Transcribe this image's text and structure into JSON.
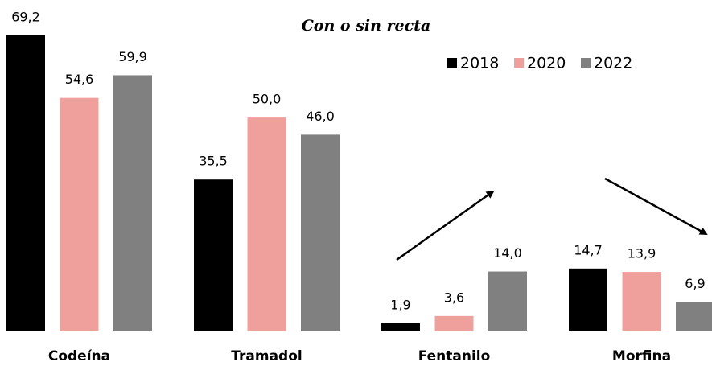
{
  "chart_data": {
    "type": "bar",
    "title": "Con o sin recta",
    "categories": [
      "Codeína",
      "Tramadol",
      "Fentanilo",
      "Morfina"
    ],
    "series": [
      {
        "name": "2018",
        "color": "#000000",
        "values": [
          69.2,
          35.5,
          1.9,
          14.7
        ],
        "value_labels": [
          "69,2",
          "35,5",
          "1,9",
          "14,7"
        ]
      },
      {
        "name": "2020",
        "color": "#f0a09c",
        "values": [
          54.6,
          50.0,
          3.6,
          13.9
        ],
        "value_labels": [
          "54,6",
          "50,0",
          "3,6",
          "13,9"
        ]
      },
      {
        "name": "2022",
        "color": "#808080",
        "values": [
          59.9,
          46.0,
          14.0,
          6.9
        ],
        "value_labels": [
          "59,9",
          "46,0",
          "14,0",
          "6,9"
        ]
      }
    ],
    "legend": "top-right"
  }
}
